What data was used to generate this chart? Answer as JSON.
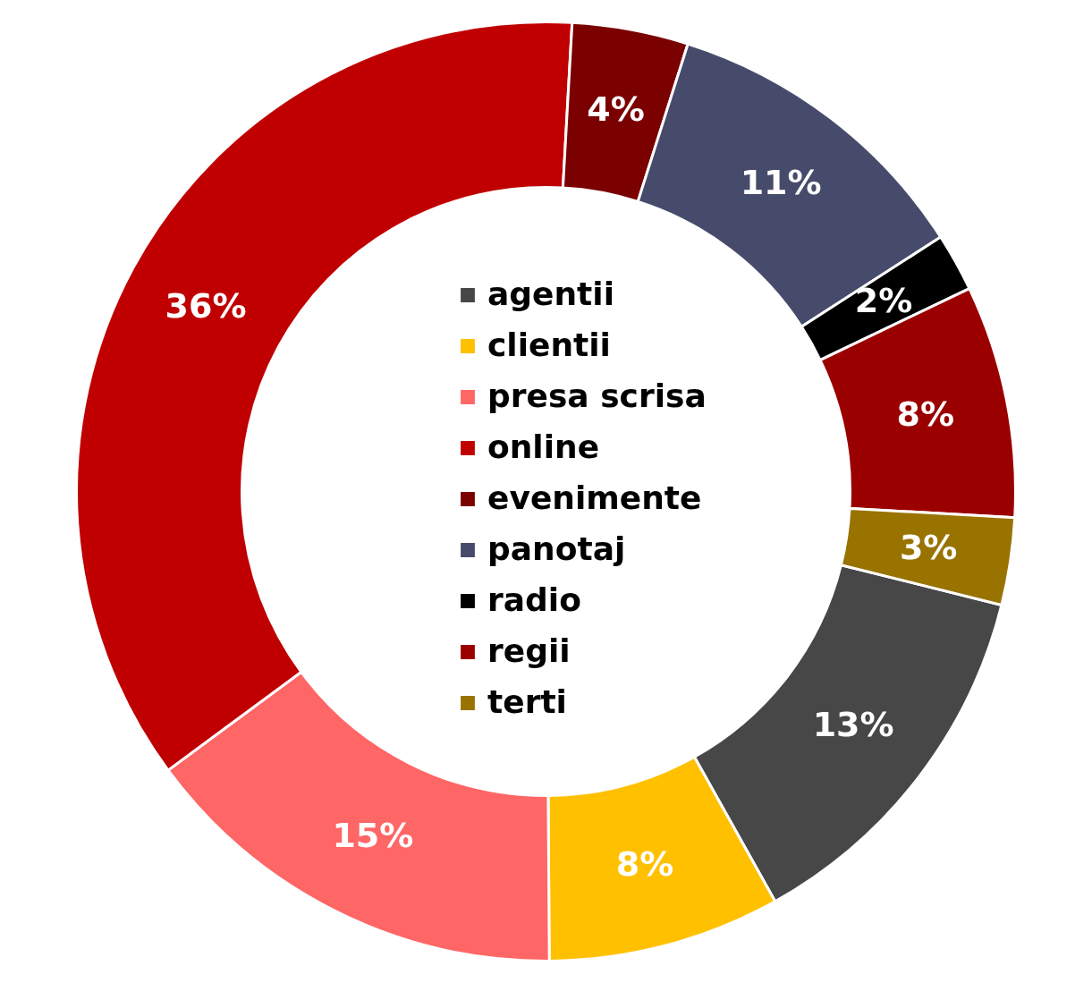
{
  "chart_data": {
    "type": "donut",
    "categories": [
      "agentii",
      "clientii",
      "presa scrisa",
      "online",
      "evenimente",
      "panotaj",
      "radio",
      "regii",
      "terti"
    ],
    "values": [
      13,
      8,
      15,
      36,
      4,
      11,
      2,
      8,
      3
    ],
    "value_labels": [
      "13%",
      "8%",
      "15%",
      "36%",
      "4%",
      "11%",
      "2%",
      "8%",
      "3%"
    ],
    "colors": [
      "#474747",
      "#ffc000",
      "#ff6666",
      "#c00000",
      "#7b0000",
      "#474b6b",
      "#000000",
      "#9b0000",
      "#997300"
    ],
    "legend": "center"
  }
}
